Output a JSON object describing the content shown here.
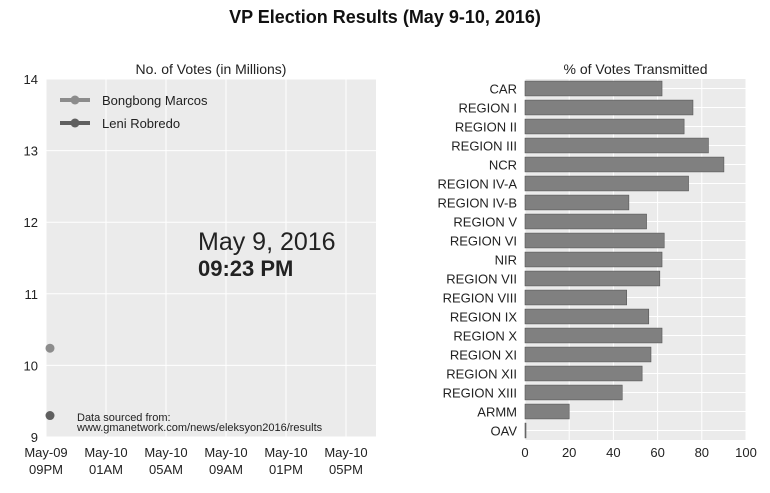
{
  "title": "VP Election Results (May 9-10, 2016)",
  "colors": {
    "panel_bg": "#ebebeb",
    "grid": "#ffffff",
    "marcos": "#8c8c8c",
    "robredo": "#5f5f5f",
    "bar": "#808080",
    "bar_edge": "#555555"
  },
  "chart_data": [
    {
      "type": "scatter",
      "title": "No. of Votes (in Millions)",
      "ylim": [
        9,
        14
      ],
      "y_ticks": [
        "9",
        "10",
        "11",
        "12",
        "13",
        "14"
      ],
      "x_tick_labels": [
        [
          "May-09",
          "09PM"
        ],
        [
          "May-10",
          "01AM"
        ],
        [
          "May-10",
          "05AM"
        ],
        [
          "May-10",
          "09AM"
        ],
        [
          "May-10",
          "01PM"
        ],
        [
          "May-10",
          "05PM"
        ]
      ],
      "grid": true,
      "legend_position": "top-left",
      "series": [
        {
          "name": "Bongbong Marcos",
          "color": "#8c8c8c",
          "points": [
            {
              "x": "May-09 09:23 PM",
              "y": 10.24
            }
          ]
        },
        {
          "name": "Leni Robredo",
          "color": "#5f5f5f",
          "points": [
            {
              "x": "May-09 09:23 PM",
              "y": 9.3
            }
          ]
        }
      ],
      "annotation_date": "May  9, 2016",
      "annotation_time": "09:23 PM",
      "source_line1": "Data sourced from:",
      "source_line2": "www.gmanetwork.com/news/eleksyon2016/results"
    },
    {
      "type": "bar",
      "orientation": "horizontal",
      "title": "% of Votes Transmitted",
      "xlim": [
        0,
        100
      ],
      "x_ticks": [
        "0",
        "20",
        "40",
        "60",
        "80",
        "100"
      ],
      "grid": true,
      "categories": [
        "CAR",
        "REGION I",
        "REGION II",
        "REGION III",
        "NCR",
        "REGION IV-A",
        "REGION IV-B",
        "REGION V",
        "REGION VI",
        "NIR",
        "REGION VII",
        "REGION VIII",
        "REGION IX",
        "REGION X",
        "REGION XI",
        "REGION XII",
        "REGION XIII",
        "ARMM",
        "OAV"
      ],
      "values": [
        62,
        76,
        72,
        83,
        90,
        74,
        47,
        55,
        63,
        62,
        61,
        46,
        56,
        62,
        57,
        53,
        44,
        20,
        0
      ]
    }
  ]
}
